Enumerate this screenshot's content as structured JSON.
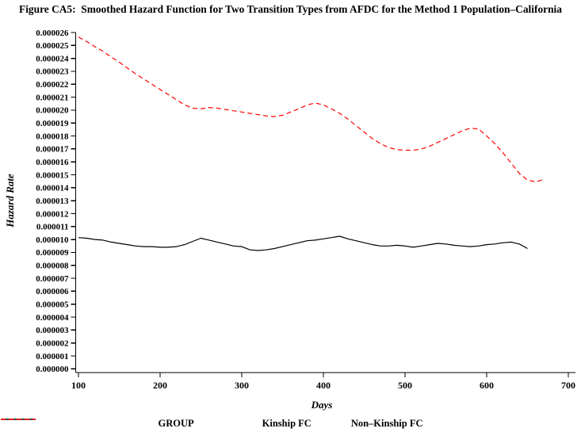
{
  "title": "Figure CA5:  Smoothed Hazard Function for Two Transition Types from AFDC for the Method 1 Population–California",
  "chart_data": {
    "type": "line",
    "title": "Figure CA5:  Smoothed Hazard Function for Two Transition Types from AFDC for the Method 1 Population–California",
    "xlabel": "Days",
    "ylabel": "Hazard Rate",
    "xlim": [
      100,
      700
    ],
    "ylim": [
      0,
      2.6e-05
    ],
    "grid": false,
    "legend_position": "bottom",
    "legend_title": "GROUP",
    "x_ticks": [
      100,
      200,
      300,
      400,
      500,
      600,
      700
    ],
    "y_tick_labels": [
      "0.000000",
      "0.000001",
      "0.000002",
      "0.000003",
      "0.000004",
      "0.000005",
      "0.000006",
      "0.000007",
      "0.000008",
      "0.000009",
      "0.000010",
      "0.000011",
      "0.000012",
      "0.000013",
      "0.000014",
      "0.000015",
      "0.000016",
      "0.000017",
      "0.000018",
      "0.000019",
      "0.000020",
      "0.000021",
      "0.000022",
      "0.000023",
      "0.000024",
      "0.000025",
      "0.000026"
    ],
    "series": [
      {
        "name": "Kinship FC",
        "color": "#000000",
        "style": "solid",
        "x": [
          100,
          110,
          120,
          130,
          140,
          150,
          160,
          170,
          180,
          190,
          200,
          210,
          220,
          230,
          240,
          250,
          260,
          270,
          280,
          290,
          300,
          310,
          320,
          330,
          340,
          350,
          360,
          370,
          380,
          390,
          400,
          410,
          420,
          430,
          440,
          450,
          460,
          470,
          480,
          490,
          500,
          510,
          520,
          530,
          540,
          550,
          560,
          570,
          580,
          590,
          600,
          610,
          620,
          630,
          640,
          650
        ],
        "y": [
          1.015e-05,
          1.01e-05,
          1e-05,
          9.95e-06,
          9.8e-06,
          9.7e-06,
          9.6e-06,
          9.5e-06,
          9.45e-06,
          9.45e-06,
          9.4e-06,
          9.4e-06,
          9.45e-06,
          9.6e-06,
          9.85e-06,
          1.01e-05,
          9.95e-06,
          9.8e-06,
          9.65e-06,
          9.5e-06,
          9.45e-06,
          9.2e-06,
          9.15e-06,
          9.2e-06,
          9.3e-06,
          9.45e-06,
          9.6e-06,
          9.75e-06,
          9.9e-06,
          9.95e-06,
          1.005e-05,
          1.015e-05,
          1.025e-05,
          1.005e-05,
          9.9e-06,
          9.75e-06,
          9.6e-06,
          9.5e-06,
          9.5e-06,
          9.55e-06,
          9.5e-06,
          9.4e-06,
          9.5e-06,
          9.6e-06,
          9.7e-06,
          9.65e-06,
          9.55e-06,
          9.5e-06,
          9.45e-06,
          9.5e-06,
          9.6e-06,
          9.65e-06,
          9.75e-06,
          9.8e-06,
          9.65e-06,
          9.3e-06
        ]
      },
      {
        "name": "Non–Kinship FC",
        "color": "#ff0000",
        "style": "dashed",
        "x": [
          100,
          110,
          120,
          130,
          140,
          150,
          160,
          170,
          180,
          190,
          200,
          210,
          220,
          230,
          240,
          250,
          260,
          270,
          280,
          290,
          300,
          310,
          320,
          330,
          340,
          350,
          360,
          370,
          380,
          390,
          400,
          410,
          420,
          430,
          440,
          450,
          460,
          470,
          480,
          490,
          500,
          510,
          520,
          530,
          540,
          550,
          560,
          570,
          580,
          590,
          600,
          610,
          620,
          630,
          640,
          650,
          660,
          670
        ],
        "y": [
          2.565e-05,
          2.53e-05,
          2.49e-05,
          2.455e-05,
          2.41e-05,
          2.37e-05,
          2.325e-05,
          2.28e-05,
          2.24e-05,
          2.2e-05,
          2.16e-05,
          2.12e-05,
          2.08e-05,
          2.04e-05,
          2.015e-05,
          2.01e-05,
          2.02e-05,
          2.015e-05,
          2.005e-05,
          1.995e-05,
          1.985e-05,
          1.975e-05,
          1.965e-05,
          1.955e-05,
          1.95e-05,
          1.96e-05,
          1.985e-05,
          2.01e-05,
          2.04e-05,
          2.055e-05,
          2.04e-05,
          2.01e-05,
          1.975e-05,
          1.93e-05,
          1.88e-05,
          1.83e-05,
          1.78e-05,
          1.74e-05,
          1.71e-05,
          1.695e-05,
          1.69e-05,
          1.69e-05,
          1.7e-05,
          1.72e-05,
          1.75e-05,
          1.78e-05,
          1.81e-05,
          1.84e-05,
          1.86e-05,
          1.855e-05,
          1.8e-05,
          1.74e-05,
          1.67e-05,
          1.59e-05,
          1.51e-05,
          1.46e-05,
          1.445e-05,
          1.465e-05
        ]
      }
    ]
  }
}
